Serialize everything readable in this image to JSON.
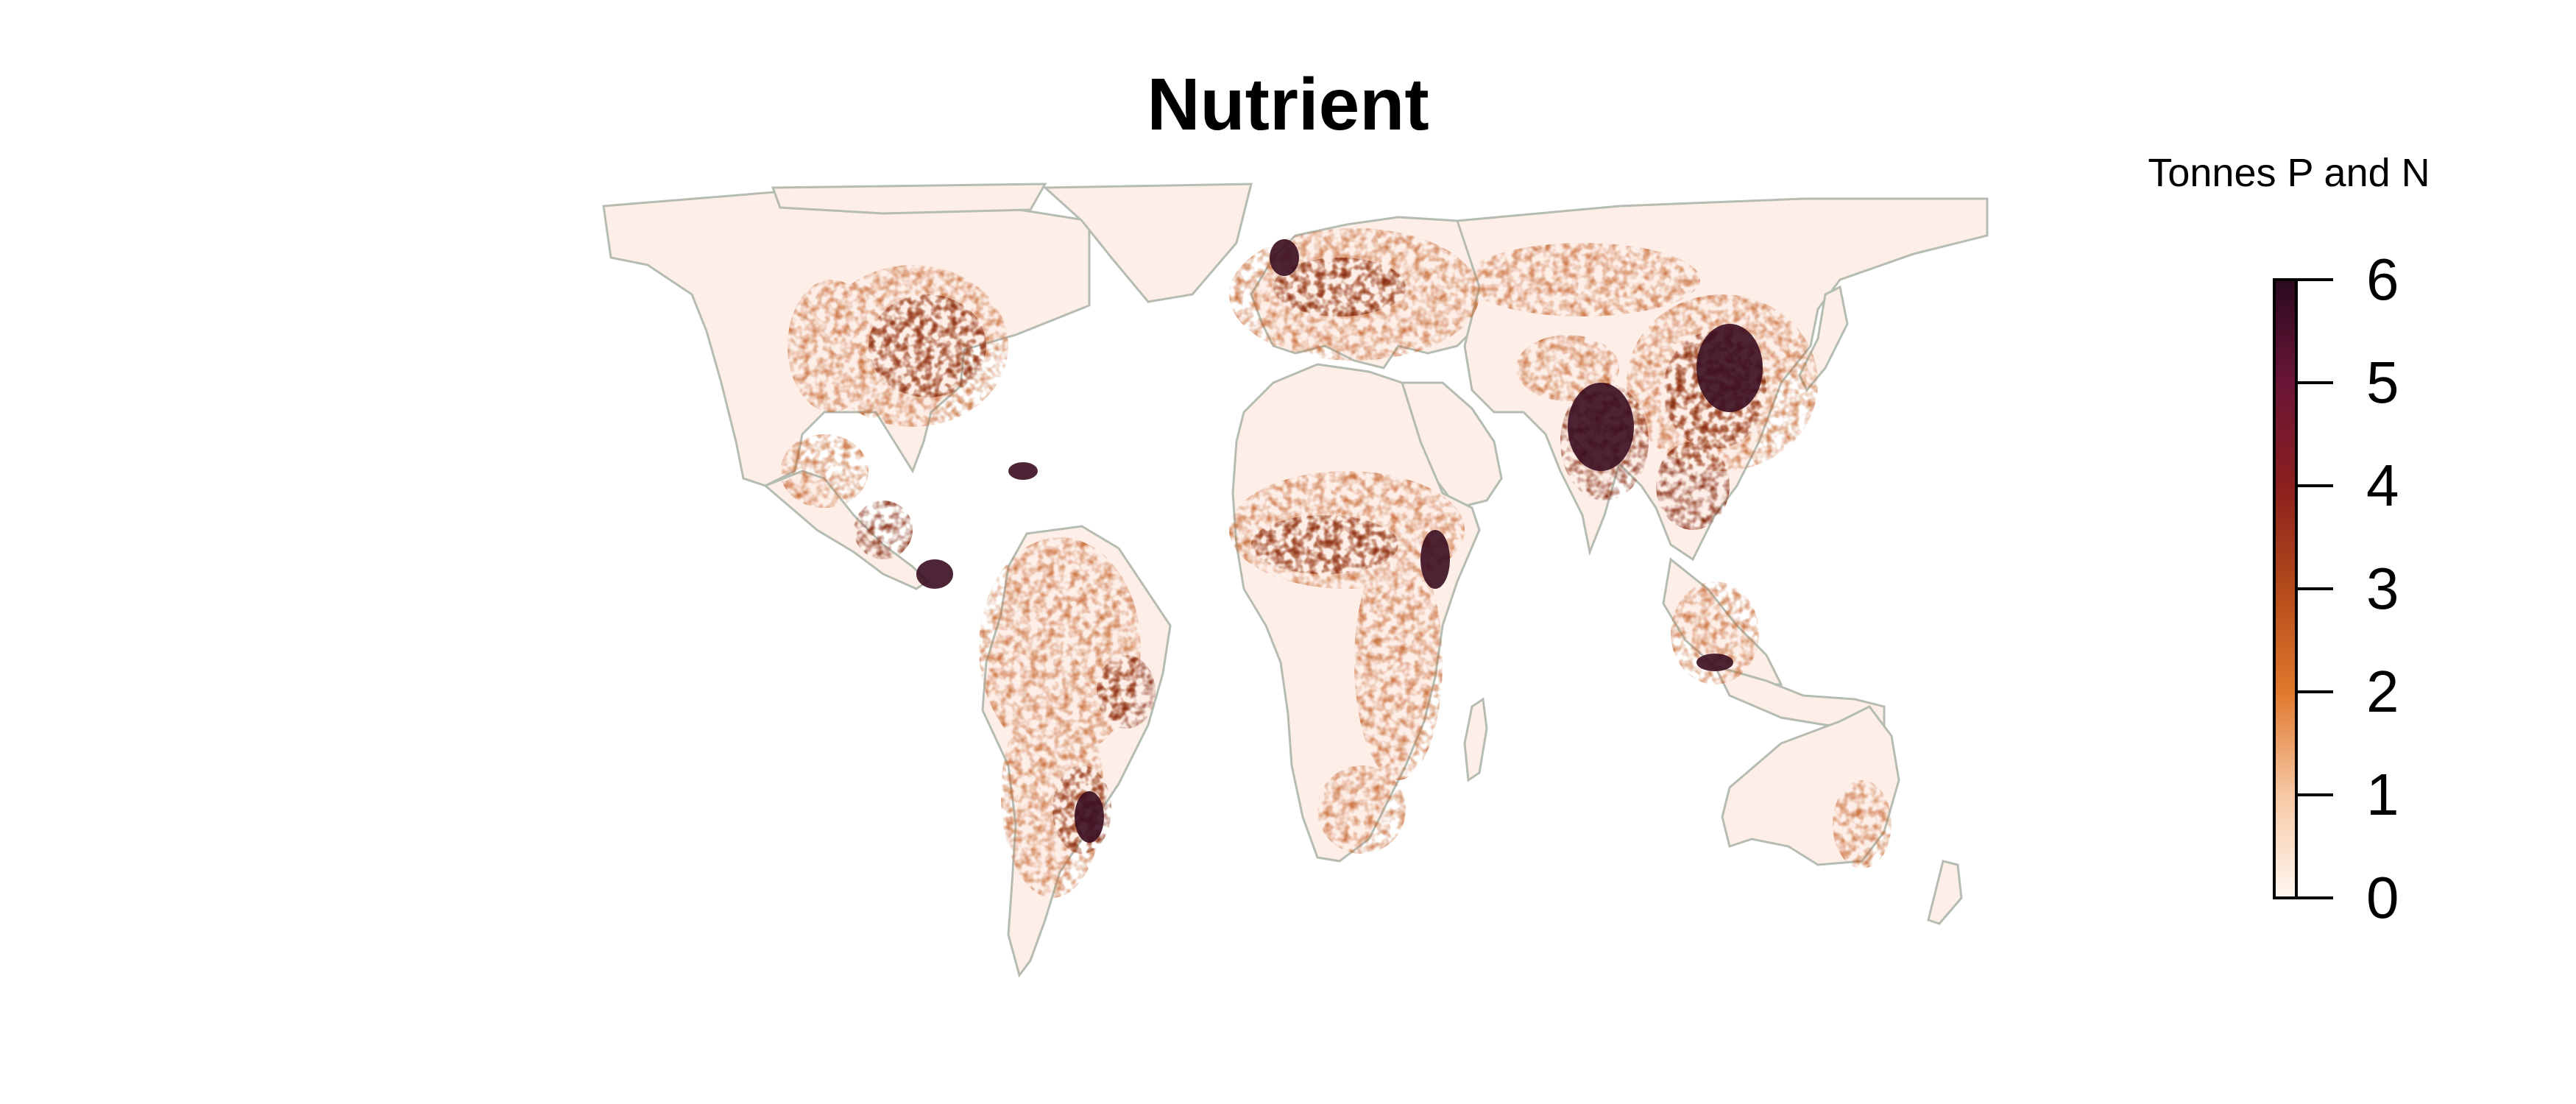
{
  "title": "Nutrient",
  "legend": {
    "title": "Tonnes P and N",
    "min": 0,
    "max": 6,
    "ticks": [
      "0",
      "1",
      "2",
      "3",
      "4",
      "5",
      "6"
    ],
    "colors": [
      "#fff7f2",
      "#f6c8a4",
      "#e0782c",
      "#b34a1a",
      "#8a1f1e",
      "#6a1537",
      "#2a0a1e"
    ]
  },
  "map": {
    "land_fill": "#fdeee8",
    "border_color": "#b5bdb3",
    "high_color": "#8b3218",
    "peak_color": "#3a0d20"
  }
}
